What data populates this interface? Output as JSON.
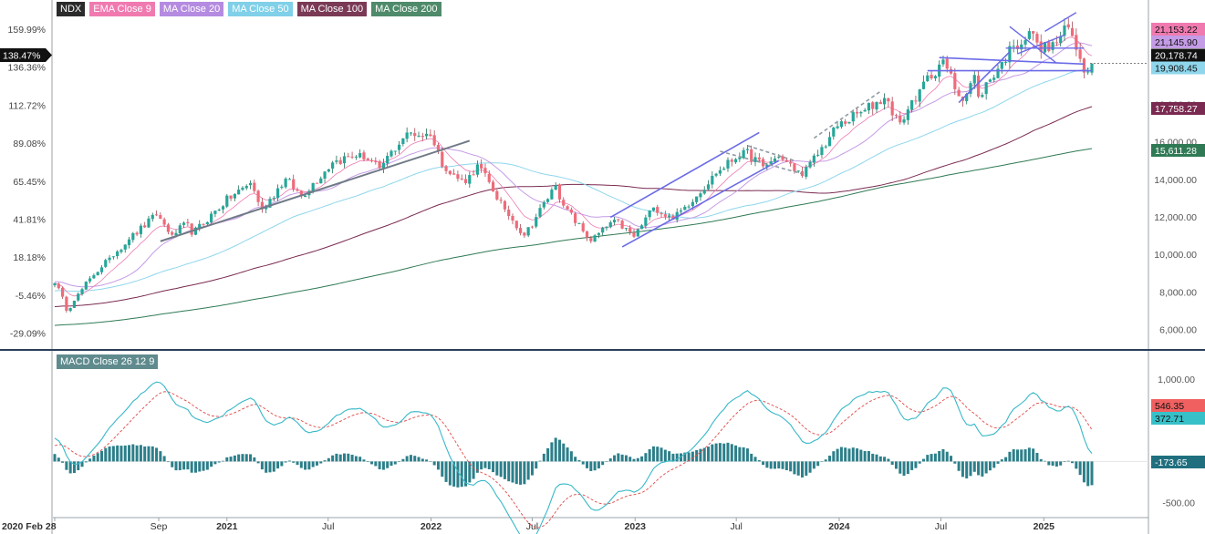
{
  "symbol": "NDX",
  "legend": [
    {
      "label": "NDX",
      "color": "#2b2b2b"
    },
    {
      "label": "EMA Close 9",
      "color": "#f07ab0"
    },
    {
      "label": "MA Close 20",
      "color": "#b48be0"
    },
    {
      "label": "MA Close 50",
      "color": "#7fd0e8"
    },
    {
      "label": "MA Close 100",
      "color": "#7a3a55"
    },
    {
      "label": "MA Close 200",
      "color": "#4f8a6a"
    }
  ],
  "macd_label": "MACD Close 26 12 9",
  "colors": {
    "up": "#26a69a",
    "down": "#ef6b7a",
    "ema9": "#f07ab0",
    "ma20": "#c49be6",
    "ma50": "#8fd6ec",
    "ma100": "#7a2a50",
    "ma200": "#2f7a55",
    "trendline_blue": "#6b6be8",
    "trendline_gray": "#707a86",
    "macd": "#38b8c8",
    "signal": "#e04848",
    "hist": "#2c7f8a"
  },
  "chart_data": [
    {
      "type": "candlestick",
      "title": "NDX",
      "x_range": [
        "2020-02-28",
        "2025-03-28"
      ],
      "x_tick_labels": [
        "2020 Feb 28",
        "Sep",
        "2021",
        "Jul",
        "2022",
        "Jul",
        "2023",
        "Jul",
        "2024",
        "Jul",
        "2025"
      ],
      "ylim": [
        5000,
        22500
      ],
      "y_ticks_right": [
        "6,000.00",
        "8,000.00",
        "10,000.00",
        "12,000.00",
        "14,000.00",
        "16,000.00",
        "18,000.00",
        "20,000.00"
      ],
      "y_ticks_left": [
        "159.99%",
        "136.36%",
        "112.72%",
        "89.08%",
        "65.45%",
        "41.81%",
        "18.18%",
        "-5.46%",
        "-29.09%"
      ],
      "current_pct_label": "138.47%",
      "price_labels": [
        {
          "text": "21,153.22",
          "series": "EMA Close 9"
        },
        {
          "text": "21,145.90",
          "series": "MA Close 20"
        },
        {
          "text": "20,178.74",
          "series": "NDX"
        },
        {
          "text": "19,908.45",
          "series": "MA Close 50"
        },
        {
          "text": "17,758.27",
          "series": "MA Close 100"
        },
        {
          "text": "15,611.28",
          "series": "MA Close 200"
        }
      ],
      "close_anchors": [
        [
          "2020-02-28",
          8461
        ],
        [
          "2020-03-13",
          7740
        ],
        [
          "2020-03-20",
          6994
        ],
        [
          "2020-04-03",
          7528
        ],
        [
          "2020-05-01",
          8718
        ],
        [
          "2020-06-05",
          9824
        ],
        [
          "2020-07-10",
          10800
        ],
        [
          "2020-08-28",
          12110
        ],
        [
          "2020-09-25",
          11050
        ],
        [
          "2020-10-23",
          11660
        ],
        [
          "2020-10-30",
          11050
        ],
        [
          "2020-12-31",
          12888
        ],
        [
          "2021-02-12",
          13800
        ],
        [
          "2021-03-05",
          12400
        ],
        [
          "2021-04-16",
          14040
        ],
        [
          "2021-05-14",
          13100
        ],
        [
          "2021-07-09",
          14900
        ],
        [
          "2021-08-27",
          15400
        ],
        [
          "2021-10-01",
          14600
        ],
        [
          "2021-11-19",
          16500
        ],
        [
          "2021-12-31",
          16320
        ],
        [
          "2022-01-28",
          14440
        ],
        [
          "2022-03-04",
          13800
        ],
        [
          "2022-03-25",
          14800
        ],
        [
          "2022-05-13",
          12400
        ],
        [
          "2022-06-17",
          11000
        ],
        [
          "2022-08-12",
          13700
        ],
        [
          "2022-08-26",
          12600
        ],
        [
          "2022-10-14",
          10700
        ],
        [
          "2022-11-25",
          11850
        ],
        [
          "2022-12-30",
          10940
        ],
        [
          "2023-02-03",
          12500
        ],
        [
          "2023-03-10",
          11850
        ],
        [
          "2023-05-26",
          14300
        ],
        [
          "2023-07-14",
          15560
        ],
        [
          "2023-08-18",
          14700
        ],
        [
          "2023-09-15",
          15200
        ],
        [
          "2023-10-27",
          14180
        ],
        [
          "2023-12-29",
          16830
        ],
        [
          "2024-02-16",
          17700
        ],
        [
          "2024-03-22",
          18340
        ],
        [
          "2024-04-19",
          17040
        ],
        [
          "2024-05-24",
          18800
        ],
        [
          "2024-07-05",
          20390
        ],
        [
          "2024-08-02",
          18440
        ],
        [
          "2024-08-09",
          18190
        ],
        [
          "2024-08-30",
          19570
        ],
        [
          "2024-09-06",
          18420
        ],
        [
          "2024-10-18",
          20270
        ],
        [
          "2024-11-08",
          21120
        ],
        [
          "2024-12-13",
          21780
        ],
        [
          "2024-12-20",
          21300
        ],
        [
          "2025-01-10",
          20850
        ],
        [
          "2025-02-14",
          22110
        ],
        [
          "2025-03-07",
          20430
        ],
        [
          "2025-03-14",
          19700
        ],
        [
          "2025-03-21",
          19750
        ],
        [
          "2025-03-28",
          20178.74
        ]
      ]
    },
    {
      "type": "macd",
      "title": "MACD Close 26 12 9",
      "ylim": [
        -650,
        1180
      ],
      "y_ticks_right": [
        "1,000.00",
        "0",
        "-500.00"
      ],
      "value_labels": [
        {
          "text": "546.35",
          "series": "signal"
        },
        {
          "text": "372.71",
          "series": "MACD"
        },
        {
          "text": "-173.65",
          "series": "histogram"
        }
      ]
    }
  ]
}
